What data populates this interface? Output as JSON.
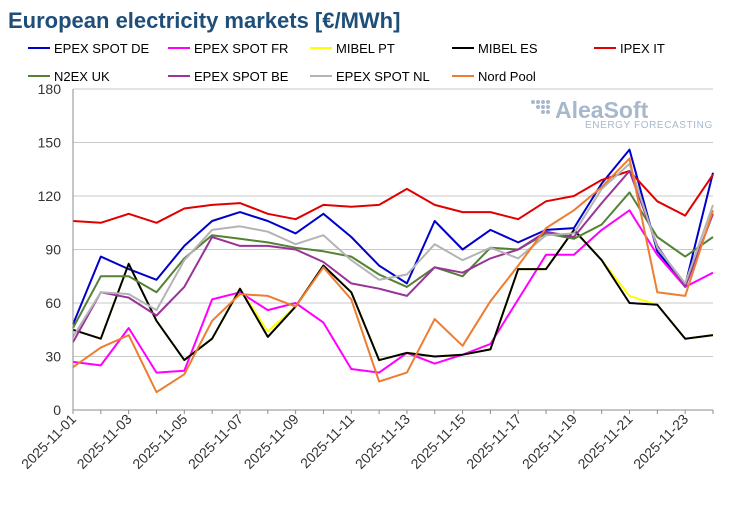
{
  "chart_data": {
    "type": "line",
    "title": "European electricity markets [€/MWh]",
    "xlabel": "",
    "ylabel": "",
    "ylim": [
      0,
      180
    ],
    "yticks": [
      0,
      30,
      60,
      90,
      120,
      150,
      180
    ],
    "grid": true,
    "legend_placement": "top",
    "x": [
      "2025-11-01",
      "2025-11-02",
      "2025-11-03",
      "2025-11-04",
      "2025-11-05",
      "2025-11-06",
      "2025-11-07",
      "2025-11-08",
      "2025-11-09",
      "2025-11-10",
      "2025-11-11",
      "2025-11-12",
      "2025-11-13",
      "2025-11-14",
      "2025-11-15",
      "2025-11-16",
      "2025-11-17",
      "2025-11-18",
      "2025-11-19",
      "2025-11-20",
      "2025-11-21",
      "2025-11-22",
      "2025-11-23",
      "2025-11-24"
    ],
    "xtick_labels": [
      "2025-11-01",
      "2025-11-03",
      "2025-11-05",
      "2025-11-07",
      "2025-11-09",
      "2025-11-11",
      "2025-11-13",
      "2025-11-15",
      "2025-11-17",
      "2025-11-19",
      "2025-11-21",
      "2025-11-23"
    ],
    "series": [
      {
        "name": "EPEX SPOT DE",
        "color": "#0000cc",
        "values": [
          48,
          86,
          79,
          73,
          92,
          106,
          111,
          106,
          99,
          110,
          97,
          81,
          71,
          106,
          90,
          101,
          94,
          101,
          102,
          127,
          146,
          89,
          70,
          133
        ]
      },
      {
        "name": "EPEX SPOT FR",
        "color": "#ff00ff",
        "values": [
          27,
          25,
          46,
          21,
          22,
          62,
          66,
          56,
          60,
          49,
          23,
          21,
          32,
          26,
          31,
          37,
          62,
          87,
          87,
          101,
          112,
          87,
          69,
          77
        ]
      },
      {
        "name": "MIBEL PT",
        "color": "#ffff00",
        "values": [
          45,
          40,
          82,
          50,
          28,
          40,
          68,
          44,
          58,
          81,
          66,
          28,
          32,
          30,
          31,
          34,
          79,
          79,
          101,
          84,
          64,
          59,
          40,
          42
        ]
      },
      {
        "name": "MIBEL ES",
        "color": "#000000",
        "values": [
          45,
          40,
          82,
          50,
          28,
          40,
          68,
          41,
          58,
          81,
          66,
          28,
          32,
          30,
          31,
          34,
          79,
          79,
          101,
          84,
          60,
          59,
          40,
          42
        ]
      },
      {
        "name": "IPEX IT",
        "color": "#e00000",
        "values": [
          106,
          105,
          110,
          105,
          113,
          115,
          116,
          110,
          107,
          115,
          114,
          115,
          124,
          115,
          111,
          111,
          107,
          117,
          120,
          129,
          134,
          117,
          109,
          132
        ]
      },
      {
        "name": "N2EX UK",
        "color": "#548235",
        "values": [
          46,
          75,
          75,
          66,
          85,
          98,
          96,
          94,
          91,
          89,
          86,
          76,
          69,
          80,
          75,
          91,
          90,
          99,
          96,
          104,
          122,
          97,
          86,
          97
        ]
      },
      {
        "name": "EPEX SPOT BE",
        "color": "#993399",
        "values": [
          38,
          66,
          63,
          53,
          69,
          97,
          92,
          92,
          90,
          83,
          71,
          68,
          64,
          80,
          77,
          85,
          90,
          100,
          97,
          116,
          134,
          92,
          69,
          110
        ]
      },
      {
        "name": "EPEX SPOT NL",
        "color": "#b4b4b4",
        "values": [
          41,
          66,
          65,
          56,
          84,
          101,
          103,
          100,
          93,
          98,
          84,
          73,
          76,
          93,
          84,
          91,
          85,
          98,
          99,
          124,
          138,
          91,
          71,
          115
        ]
      },
      {
        "name": "Nord Pool",
        "color": "#ed7d31",
        "values": [
          24,
          35,
          42,
          10,
          20,
          50,
          65,
          64,
          58,
          80,
          62,
          16,
          21,
          51,
          36,
          61,
          81,
          102,
          112,
          125,
          141,
          66,
          64,
          112
        ]
      }
    ],
    "logo": {
      "text": "AleaSoft",
      "subtext": "ENERGY FORECASTING"
    }
  }
}
